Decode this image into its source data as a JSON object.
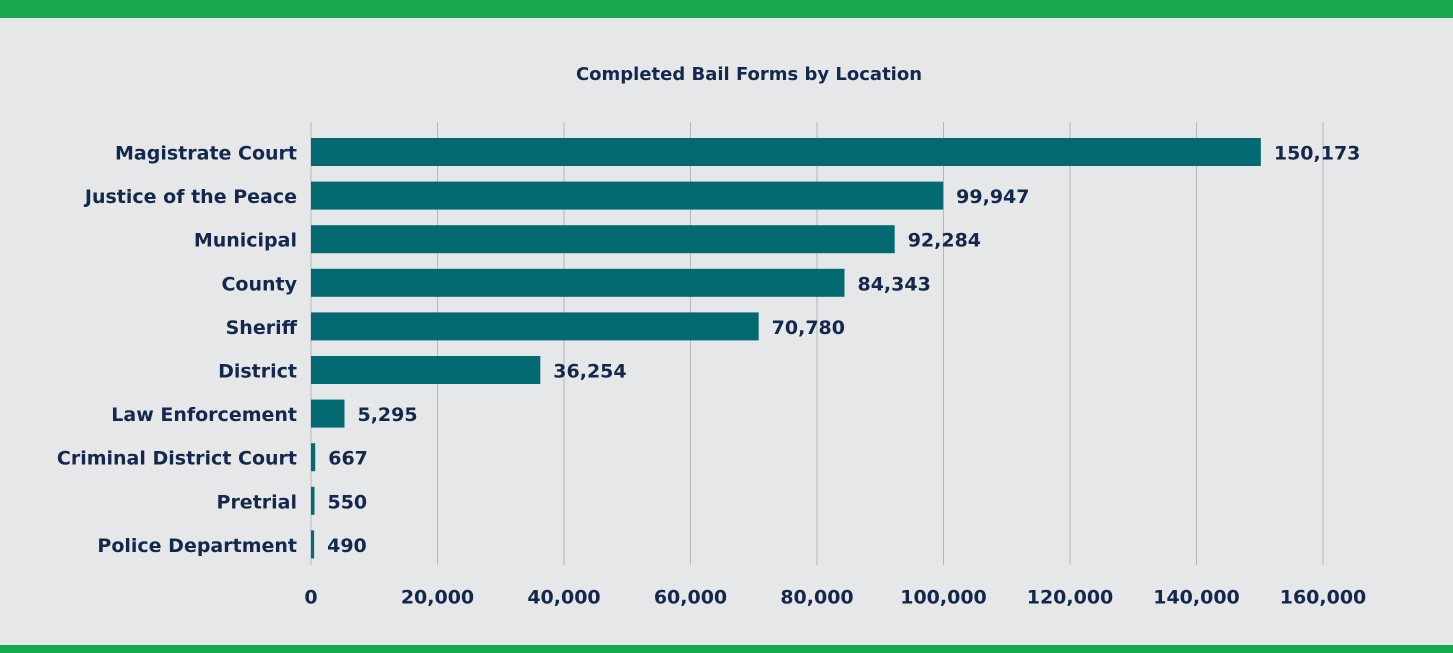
{
  "chart_data": {
    "type": "bar",
    "orientation": "horizontal",
    "title": "Completed Bail Forms by Location",
    "categories": [
      "Magistrate Court",
      "Justice of the Peace",
      "Municipal",
      "County",
      "Sheriff",
      "District",
      "Law Enforcement",
      "Criminal District Court",
      "Pretrial",
      "Police Department"
    ],
    "values": [
      150173,
      99947,
      92284,
      84343,
      70780,
      36254,
      5295,
      667,
      550,
      490
    ],
    "value_labels": [
      "150,173",
      "99,947",
      "92,284",
      "84,343",
      "70,780",
      "36,254",
      "5,295",
      "667",
      "550",
      "490"
    ],
    "color": "#036a72",
    "xlim": [
      0,
      160000
    ],
    "xticks": [
      0,
      {
        "value": 20000,
        "label": "20,000"
      },
      {
        "value": 40000,
        "label": "40,000"
      },
      {
        "value": 60000,
        "label": "60,000"
      },
      {
        "value": 80000,
        "label": "80,000"
      },
      {
        "value": 100000,
        "label": "100,000"
      },
      {
        "value": 120000,
        "label": "120,000"
      },
      {
        "value": 140000,
        "label": "140,000"
      },
      {
        "value": 160000,
        "label": "160,000"
      }
    ],
    "grid": true
  }
}
